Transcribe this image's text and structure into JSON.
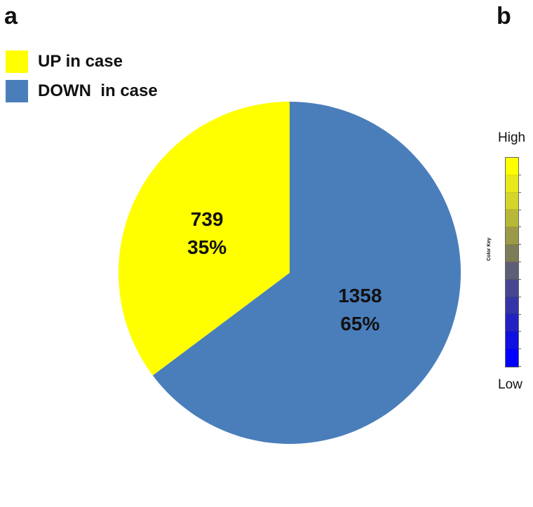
{
  "panels": {
    "a": "a",
    "b": "b"
  },
  "legend": [
    {
      "label": "UP in case",
      "color": "#ffff00",
      "icon": "yellow-square-icon"
    },
    {
      "label": "DOWN  in case",
      "color": "#4a7ebb",
      "icon": "blue-square-icon"
    }
  ],
  "chart_data": {
    "type": "pie",
    "slices": [
      {
        "name": "UP in case",
        "value": 739,
        "percent_label": "35%",
        "color": "#ffff00"
      },
      {
        "name": "DOWN  in case",
        "value": 1358,
        "percent_label": "65%",
        "color": "#4a7ebb"
      }
    ],
    "start": "top, clockwise DOWN first"
  },
  "color_key": {
    "title": "Color Key",
    "high_label": "High",
    "low_label": "Low",
    "gradient_top_to_bottom": [
      "#ffff00",
      "#e8e81a",
      "#d4d42a",
      "#b8b838",
      "#9a9a48",
      "#7c7c58",
      "#5e5e78",
      "#464690",
      "#3434a8",
      "#2222c4",
      "#1010e0",
      "#0000ff"
    ]
  }
}
